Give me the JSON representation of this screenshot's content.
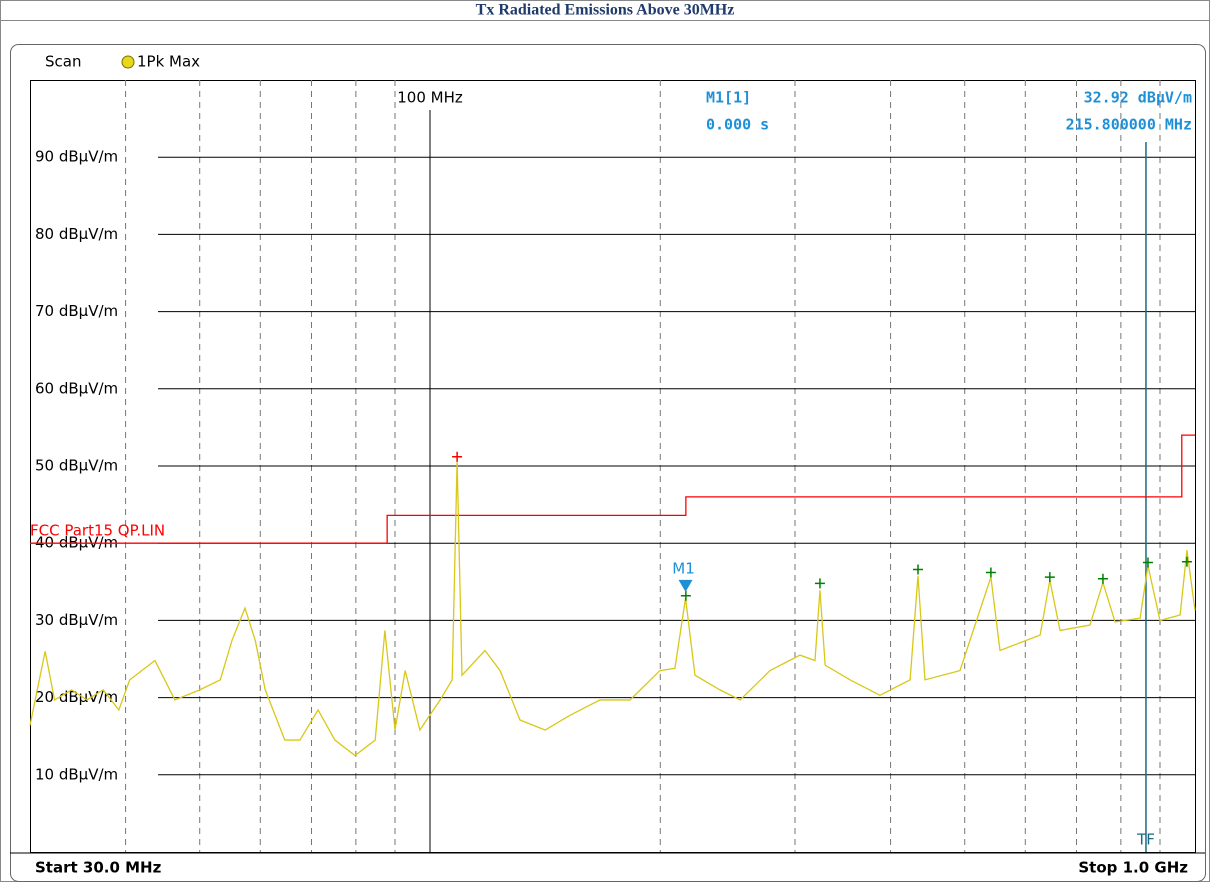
{
  "header": {
    "title": "Tx Radiated Emissions Above 30MHz"
  },
  "chart_data": {
    "type": "line",
    "scan_label": "Scan",
    "trace_label": "1Pk Max",
    "start_label": "Start 30.0 MHz",
    "stop_label": "Stop 1.0 GHz",
    "xscale": "log",
    "xlim": [
      30,
      1000
    ],
    "ylim": [
      0,
      100
    ],
    "xticks": [
      {
        "value": 100,
        "label": "100 MHz"
      }
    ],
    "xminor": [
      40,
      50,
      60,
      70,
      80,
      90,
      200,
      300,
      400,
      500,
      600,
      700,
      800,
      900
    ],
    "yticks": [
      {
        "value": 10,
        "label": "10 dBµV/m"
      },
      {
        "value": 20,
        "label": "20 dBµV/m"
      },
      {
        "value": 30,
        "label": "30 dBµV/m"
      },
      {
        "value": 40,
        "label": "40 dBµV/m"
      },
      {
        "value": 50,
        "label": "50 dBµV/m"
      },
      {
        "value": 60,
        "label": "60 dBµV/m"
      },
      {
        "value": 70,
        "label": "70 dBµV/m"
      },
      {
        "value": 80,
        "label": "80 dBµV/m"
      },
      {
        "value": 90,
        "label": "90 dBµV/m"
      }
    ],
    "grid": true,
    "x": [
      30,
      31.4,
      32.3,
      34.0,
      35.6,
      37.4,
      39.2,
      40.5,
      43.7,
      46.4,
      50.0,
      53.2,
      55.1,
      57.3,
      59.1,
      60.9,
      64.6,
      67.6,
      71.4,
      75.1,
      79.8,
      84.8,
      87.3,
      90.0,
      92.8,
      97.0,
      103.1,
      106.9,
      108.5,
      110.1,
      118.0,
      123.5,
      131.1,
      141.4,
      152.4,
      166.8,
      182.6,
      199.8,
      209.0,
      215.8,
      222.0,
      239.4,
      254.3,
      278.3,
      304.5,
      318.6,
      323.4,
      328.5,
      354.0,
      387.4,
      424.2,
      434.4,
      443.6,
      492.9,
      541,
      556.0,
      627.4,
      646,
      666.2,
      729.0,
      758,
      786.1,
      847.6,
      868,
      900.0,
      956.2,
      976,
      1000
    ],
    "series": [
      {
        "name": "1Pk Max",
        "color": "#d8c818",
        "values": [
          16.4,
          26,
          19.7,
          21,
          19.7,
          21,
          18.4,
          22.3,
          24.8,
          19.7,
          21,
          22.3,
          27.4,
          31.6,
          27.4,
          21,
          14.5,
          14.5,
          18.4,
          14.5,
          12.5,
          14.5,
          28.7,
          15.8,
          23.5,
          15.8,
          19.7,
          22.3,
          50.7,
          22.9,
          26.1,
          23.5,
          17.1,
          15.8,
          17.7,
          19.7,
          19.7,
          23.5,
          23.8,
          32.9,
          22.9,
          21,
          19.7,
          23.5,
          25.5,
          24.8,
          33.9,
          24.2,
          22.3,
          20.3,
          22.3,
          35.8,
          22.3,
          23.5,
          35.6,
          26.1,
          28.1,
          35.2,
          28.7,
          29.4,
          34.9,
          29.8,
          30.3,
          37.1,
          30,
          30.7,
          39.1,
          31.3
        ]
      }
    ],
    "limit": {
      "name": "FCC Part15 QP.LIN",
      "color": "#ff0000",
      "x": [
        30,
        87.9,
        87.9,
        216,
        216,
        961,
        961,
        1000
      ],
      "values": [
        40,
        40,
        43.6,
        43.6,
        46,
        46,
        54,
        54
      ]
    },
    "peaks": [
      {
        "x": 108.5,
        "value": 51.2,
        "color": "#ff0000"
      },
      {
        "x": 216,
        "value": 33.2,
        "color": "#008000"
      },
      {
        "x": 323.4,
        "value": 34.8,
        "color": "#008000"
      },
      {
        "x": 434.4,
        "value": 36.6,
        "color": "#008000"
      },
      {
        "x": 541,
        "value": 36.2,
        "color": "#008000"
      },
      {
        "x": 646,
        "value": 35.6,
        "color": "#008000"
      },
      {
        "x": 758,
        "value": 35.4,
        "color": "#008000"
      },
      {
        "x": 868,
        "value": 37.5,
        "color": "#008000"
      },
      {
        "x": 976,
        "value": 37.6,
        "color": "#008000"
      }
    ],
    "marker": {
      "label": "M1",
      "name": "M1[1]",
      "x": 215.8,
      "x_label": "215.800000 MHz",
      "value": 32.92,
      "value_label": "32.92 dBµV/m",
      "time_label": "0.000 s",
      "color": "#1e90d8"
    },
    "tf": {
      "label": "TF",
      "x": 862.8,
      "color": "#1a6a80"
    }
  }
}
